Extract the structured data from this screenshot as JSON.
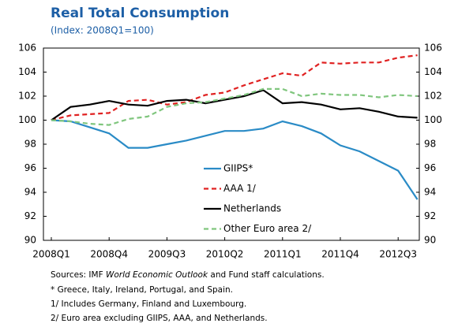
{
  "chart_data": {
    "type": "line",
    "title": "Real Total Consumption",
    "subtitle": "(Index: 2008Q1=100)",
    "categories": [
      "2008Q1",
      null,
      null,
      "2008Q4",
      null,
      null,
      "2009Q3",
      null,
      null,
      "2010Q2",
      null,
      null,
      "2011Q1",
      null,
      null,
      "2011Q4",
      null,
      null,
      "2012Q3",
      null
    ],
    "series": [
      {
        "name": "GIIPS*",
        "color": "#2a8bc6",
        "linestyle": "solid",
        "values": [
          100,
          99.9,
          99.4,
          98.9,
          97.7,
          97.7,
          98.0,
          98.3,
          98.7,
          99.1,
          99.1,
          99.3,
          99.9,
          99.5,
          98.9,
          97.9,
          97.4,
          96.6,
          95.8,
          93.4
        ]
      },
      {
        "name": "AAA 1/",
        "color": "#e02222",
        "linestyle": "dashed",
        "values": [
          100,
          100.4,
          100.5,
          100.6,
          101.6,
          101.7,
          101.3,
          101.5,
          102.1,
          102.3,
          102.9,
          103.4,
          103.9,
          103.7,
          104.8,
          104.7,
          104.8,
          104.8,
          105.2,
          105.4
        ]
      },
      {
        "name": "Netherlands",
        "color": "#000000",
        "linestyle": "solid",
        "values": [
          100,
          101.1,
          101.3,
          101.6,
          101.3,
          101.2,
          101.6,
          101.7,
          101.4,
          101.7,
          102.0,
          102.5,
          101.4,
          101.5,
          101.3,
          100.9,
          101.0,
          100.7,
          100.3,
          100.2
        ]
      },
      {
        "name": "Other Euro area 2/",
        "color": "#80c67e",
        "linestyle": "dashed",
        "values": [
          100,
          99.9,
          99.7,
          99.6,
          100.1,
          100.3,
          101.1,
          101.4,
          101.5,
          101.8,
          102.1,
          102.6,
          102.6,
          102.0,
          102.2,
          102.1,
          102.1,
          101.9,
          102.1,
          102.0
        ]
      }
    ],
    "ylim": [
      90,
      106
    ],
    "yticks": [
      90,
      92,
      94,
      96,
      98,
      100,
      102,
      104,
      106
    ],
    "y2lim": [
      90,
      106
    ],
    "y2ticks": [
      90,
      92,
      94,
      96,
      98,
      100,
      102,
      104,
      106
    ],
    "grid": false,
    "legend": "bottom-center",
    "notes": {
      "sources": [
        "Sources: IMF ",
        "World Economic Outlook",
        " and Fund staff calculations."
      ],
      "lines": [
        "* Greece, Italy, Ireland, Portugal, and Spain.",
        "1/ Includes Germany, Finland and Luxembourg.",
        "2/ Euro area excluding GIIPS, AAA, and Netherlands."
      ]
    }
  }
}
